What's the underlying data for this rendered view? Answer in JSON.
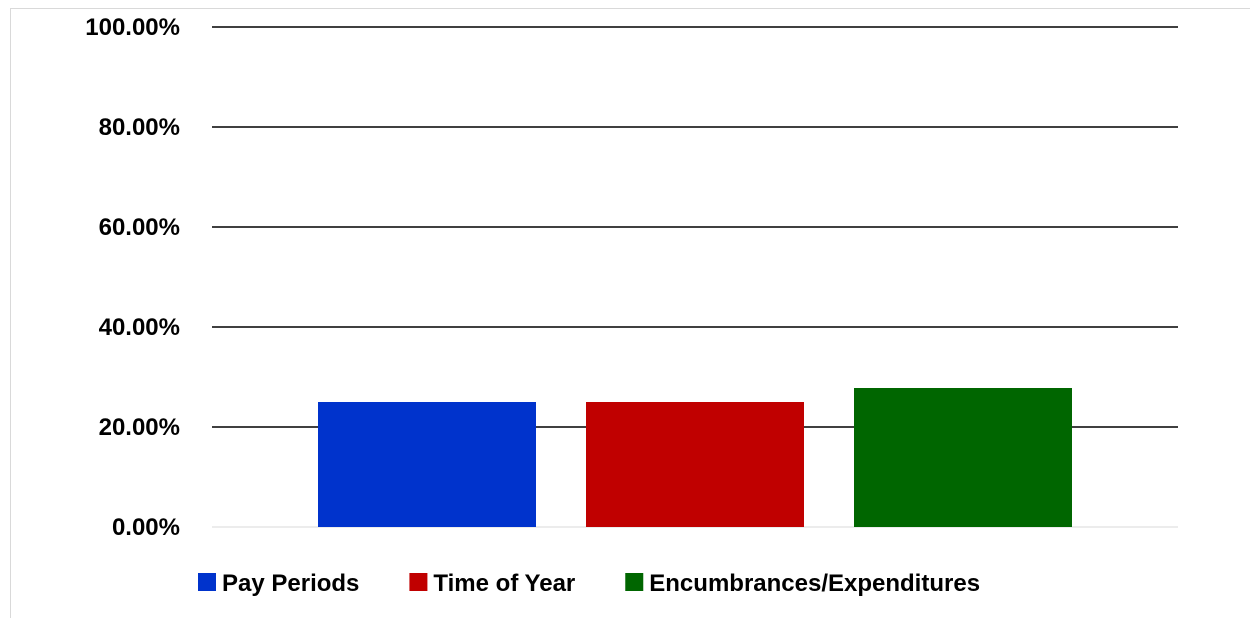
{
  "chart_data": {
    "type": "bar",
    "categories": [
      ""
    ],
    "series": [
      {
        "name": "Pay Periods",
        "values": [
          25.0
        ],
        "color": "#0033cc"
      },
      {
        "name": "Time of Year",
        "values": [
          25.0
        ],
        "color": "#c00000"
      },
      {
        "name": "Encumbrances/Expenditures",
        "values": [
          27.8
        ],
        "color": "#006600"
      }
    ],
    "ylim": [
      0,
      100
    ],
    "yticks": [
      0,
      20,
      40,
      60,
      80,
      100
    ],
    "ytick_labels": [
      "0.00%",
      "20.00%",
      "40.00%",
      "60.00%",
      "80.00%",
      "100.00%"
    ],
    "grid": true,
    "legend_position": "bottom",
    "title": "",
    "xlabel": "",
    "ylabel": ""
  }
}
